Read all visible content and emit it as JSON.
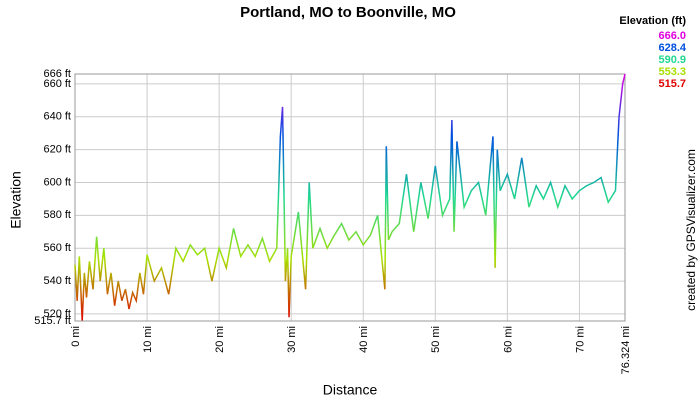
{
  "chart_data": {
    "type": "line",
    "title": "Portland, MO to Boonville, MO",
    "x_label": "Distance",
    "y_label": "Elevation",
    "credit": "created by GPSVisualizer.com",
    "legend_title": "Elevation (ft)",
    "legend": [
      {
        "label": "666.0",
        "value": 666.0,
        "color": "#e000e0"
      },
      {
        "label": "628.4",
        "value": 628.4,
        "color": "#0050e0"
      },
      {
        "label": "590.9",
        "value": 590.9,
        "color": "#20d890"
      },
      {
        "label": "553.3",
        "value": 553.3,
        "color": "#a8e000"
      },
      {
        "label": "515.7",
        "value": 515.7,
        "color": "#e00000"
      }
    ],
    "x": [
      0,
      0.3,
      0.6,
      1,
      1.3,
      1.6,
      2,
      2.5,
      3,
      3.5,
      4,
      4.5,
      5,
      5.5,
      6,
      6.5,
      7,
      7.5,
      8,
      8.5,
      9,
      9.5,
      10,
      11,
      12,
      13,
      14,
      15,
      16,
      17,
      18,
      19,
      20,
      21,
      22,
      23,
      24,
      25,
      26,
      27,
      28,
      28.5,
      28.8,
      29.2,
      29.5,
      29.7,
      30,
      31,
      32,
      32.5,
      33,
      34,
      35,
      36,
      37,
      38,
      39,
      40,
      41,
      42,
      43,
      43.2,
      43.5,
      44,
      45,
      46,
      47,
      48,
      49,
      50,
      51,
      52,
      52.3,
      52.6,
      53,
      54,
      55,
      56,
      57,
      58,
      58.3,
      58.6,
      59,
      60,
      61,
      62,
      63,
      64,
      65,
      66,
      67,
      68,
      69,
      70,
      71,
      72,
      73,
      74,
      75,
      75.5,
      76,
      76.324
    ],
    "series": [
      {
        "name": "Elevation",
        "values": [
          550,
          528,
          555,
          516,
          545,
          530,
          552,
          535,
          567,
          540,
          560,
          532,
          545,
          525,
          540,
          528,
          535,
          523,
          533,
          528,
          545,
          532,
          556,
          540,
          548,
          532,
          560,
          552,
          562,
          556,
          560,
          540,
          560,
          548,
          572,
          555,
          562,
          555,
          566,
          552,
          560,
          628,
          646,
          540,
          560,
          518,
          555,
          582,
          535,
          600,
          560,
          572,
          560,
          568,
          575,
          565,
          570,
          562,
          568,
          580,
          535,
          622,
          565,
          570,
          575,
          605,
          570,
          600,
          578,
          610,
          580,
          590,
          638,
          570,
          625,
          585,
          595,
          600,
          580,
          628,
          548,
          620,
          595,
          605,
          590,
          615,
          585,
          598,
          590,
          600,
          585,
          598,
          590,
          595,
          598,
          600,
          603,
          588,
          595,
          640,
          660,
          666
        ]
      }
    ],
    "xlim": [
      0,
      76.324
    ],
    "ylim": [
      515.7,
      666
    ],
    "xticks": [
      {
        "value": 0,
        "label": "0 mi"
      },
      {
        "value": 10,
        "label": "10 mi"
      },
      {
        "value": 20,
        "label": "20 mi"
      },
      {
        "value": 30,
        "label": "30 mi"
      },
      {
        "value": 40,
        "label": "40 mi"
      },
      {
        "value": 50,
        "label": "50 mi"
      },
      {
        "value": 60,
        "label": "60 mi"
      },
      {
        "value": 70,
        "label": "70 mi"
      },
      {
        "value": 76.324,
        "label": "76.324 mi"
      }
    ],
    "yticks": [
      {
        "value": 515.7,
        "label": "515.7 ft"
      },
      {
        "value": 520,
        "label": "520 ft"
      },
      {
        "value": 540,
        "label": "540 ft"
      },
      {
        "value": 560,
        "label": "560 ft"
      },
      {
        "value": 580,
        "label": "580 ft"
      },
      {
        "value": 600,
        "label": "600 ft"
      },
      {
        "value": 620,
        "label": "620 ft"
      },
      {
        "value": 640,
        "label": "640 ft"
      },
      {
        "value": 660,
        "label": "660 ft"
      },
      {
        "value": 666,
        "label": "666 ft"
      }
    ],
    "grid": true
  }
}
